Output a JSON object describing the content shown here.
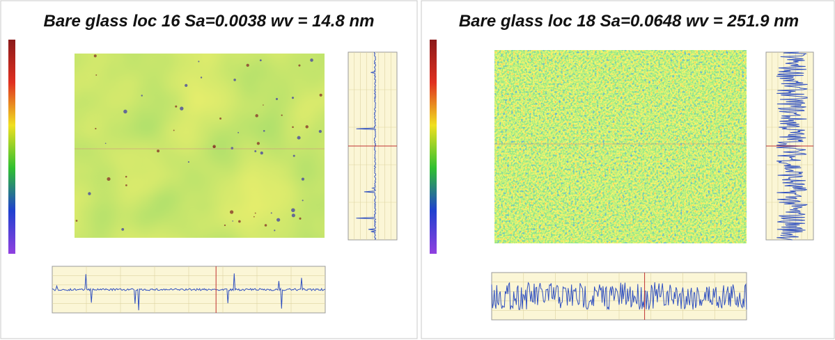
{
  "panels": [
    {
      "title": "Bare glass loc 16  Sa=0.0038 wv = 14.8 nm"
    },
    {
      "title": "Bare glass loc 18    Sa=0.0648 wv = 251.9 nm"
    }
  ]
}
